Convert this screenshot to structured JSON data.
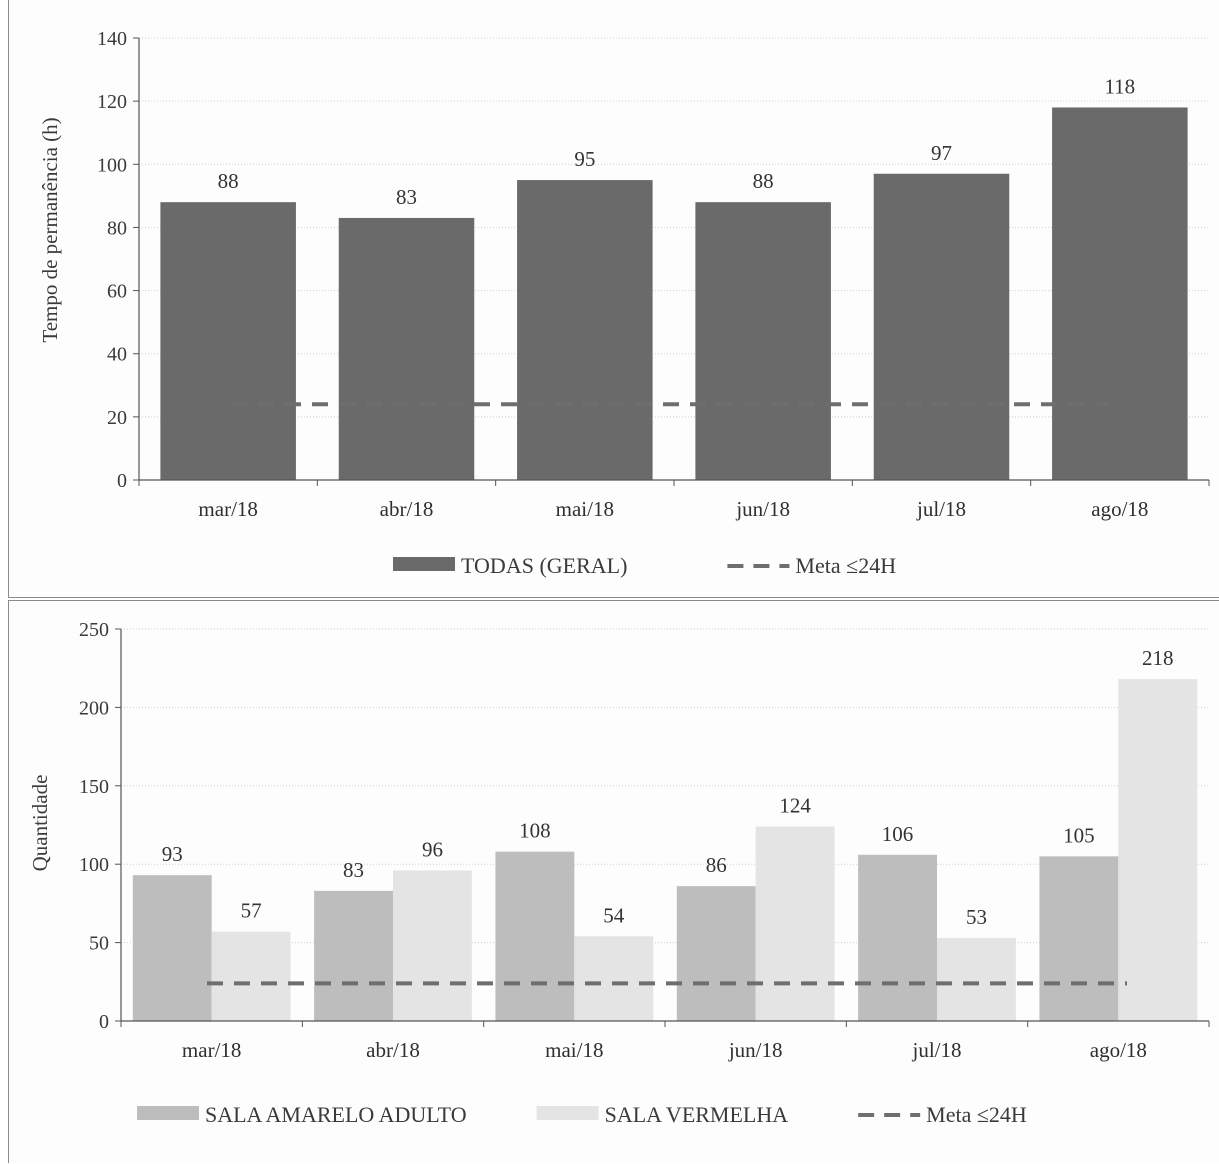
{
  "chart_data": [
    {
      "type": "bar",
      "title": "",
      "xlabel": "",
      "ylabel": "Tempo de permanência (h)",
      "ylim": [
        0,
        140
      ],
      "yticks": [
        0,
        20,
        40,
        60,
        80,
        100,
        120,
        140
      ],
      "categories": [
        "mar/18",
        "abr/18",
        "mai/18",
        "jun/18",
        "jul/18",
        "ago/18"
      ],
      "series": [
        {
          "name": "TODAS (GERAL)",
          "values": [
            88,
            83,
            95,
            88,
            97,
            118
          ],
          "color": "#6a6a6a"
        }
      ],
      "reference_line": {
        "name": "Meta ≤24H",
        "value": 24,
        "style": "dashed",
        "color": "#6e6e6e"
      },
      "grid": true,
      "legend": "bottom"
    },
    {
      "type": "bar",
      "title": "",
      "xlabel": "",
      "ylabel": "Quantidade",
      "ylim": [
        0,
        250
      ],
      "yticks": [
        0,
        50,
        100,
        150,
        200,
        250
      ],
      "categories": [
        "mar/18",
        "abr/18",
        "mai/18",
        "jun/18",
        "jul/18",
        "ago/18"
      ],
      "series": [
        {
          "name": "SALA AMARELO ADULTO",
          "values": [
            93,
            83,
            108,
            86,
            106,
            105
          ],
          "color": "#bdbdbd"
        },
        {
          "name": "SALA VERMELHA",
          "values": [
            57,
            96,
            54,
            124,
            53,
            218
          ],
          "color": "#e4e4e4"
        }
      ],
      "reference_line": {
        "name": "Meta ≤24H",
        "value": 24,
        "style": "dashed",
        "color": "#6e6e6e"
      },
      "grid": true,
      "legend": "bottom"
    }
  ]
}
